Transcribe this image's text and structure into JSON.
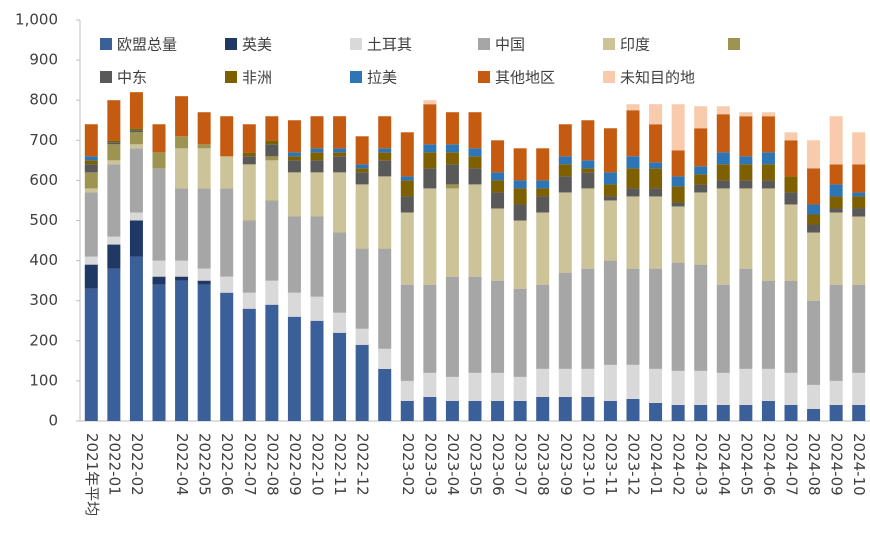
{
  "chart_data": {
    "type": "stacked_bar",
    "categories": [
      "2021年平均",
      "2022-01",
      "2022-02",
      null,
      "2022-04",
      "2022-05",
      "2022-06",
      "2022-07",
      "2022-08",
      "2022-09",
      "2022-10",
      "2022-11",
      "2022-12",
      null,
      "2023-02",
      "2023-03",
      "2023-04",
      "2023-05",
      "2023-06",
      "2023-07",
      "2023-08",
      "2023-09",
      "2023-10",
      "2023-11",
      "2023-12",
      "2024-01",
      "2024-02",
      "2024-03",
      "2024-04",
      "2024-05",
      "2024-06",
      "2024-07",
      "2024-08",
      "2024-09",
      "2024-10"
    ],
    "series": [
      {
        "name": "欧盟总量",
        "color": "#3b5f99",
        "values": [
          330,
          380,
          410,
          340,
          350,
          340,
          320,
          280,
          290,
          260,
          250,
          220,
          190,
          130,
          50,
          60,
          50,
          50,
          50,
          50,
          60,
          60,
          60,
          50,
          55,
          45,
          40,
          40,
          40,
          40,
          50,
          40,
          30,
          40,
          40
        ]
      },
      {
        "name": "英美",
        "color": "#1f3864",
        "values": [
          60,
          60,
          90,
          20,
          10,
          10,
          0,
          0,
          0,
          0,
          0,
          0,
          0,
          0,
          0,
          0,
          0,
          0,
          0,
          0,
          0,
          0,
          0,
          0,
          0,
          0,
          0,
          0,
          0,
          0,
          0,
          0,
          0,
          0,
          0
        ]
      },
      {
        "name": "土耳其",
        "color": "#d9d9d9",
        "values": [
          20,
          20,
          20,
          40,
          40,
          30,
          40,
          40,
          60,
          60,
          60,
          50,
          40,
          50,
          50,
          60,
          60,
          70,
          70,
          60,
          70,
          70,
          70,
          90,
          85,
          85,
          85,
          85,
          80,
          90,
          80,
          80,
          60,
          60,
          80
        ]
      },
      {
        "name": "中国",
        "color": "#a6a6a6",
        "values": [
          160,
          180,
          160,
          230,
          180,
          200,
          220,
          180,
          200,
          190,
          200,
          200,
          200,
          250,
          240,
          220,
          250,
          240,
          230,
          220,
          210,
          240,
          250,
          260,
          240,
          250,
          270,
          265,
          220,
          250,
          220,
          230,
          210,
          240,
          220
        ]
      },
      {
        "name": "印度",
        "color": "#cdc398",
        "values": [
          10,
          10,
          10,
          0,
          100,
          100,
          80,
          140,
          100,
          110,
          110,
          150,
          160,
          180,
          180,
          240,
          220,
          230,
          180,
          170,
          180,
          200,
          200,
          150,
          180,
          180,
          140,
          180,
          240,
          200,
          230,
          190,
          170,
          180,
          170
        ]
      },
      {
        "color": "#9c9450",
        "values": [
          40,
          40,
          30,
          40,
          30,
          10,
          0,
          0,
          10,
          0,
          0,
          0,
          0,
          0,
          0,
          0,
          10,
          0,
          0,
          0,
          0,
          0,
          0,
          0,
          0,
          0,
          0,
          0,
          0,
          0,
          0,
          0,
          0,
          0,
          0
        ]
      },
      {
        "name": "中东",
        "color": "#595959",
        "values": [
          20,
          5,
          5,
          0,
          0,
          0,
          0,
          20,
          30,
          30,
          30,
          40,
          30,
          40,
          40,
          50,
          50,
          40,
          40,
          40,
          40,
          40,
          40,
          10,
          20,
          20,
          10,
          20,
          20,
          20,
          20,
          30,
          20,
          10,
          20
        ]
      },
      {
        "name": "非洲",
        "color": "#7f6000",
        "values": [
          10,
          5,
          5,
          0,
          0,
          0,
          0,
          10,
          10,
          10,
          20,
          10,
          10,
          20,
          40,
          40,
          30,
          30,
          30,
          40,
          20,
          30,
          10,
          30,
          50,
          50,
          40,
          25,
          40,
          40,
          40,
          40,
          25,
          30,
          30
        ]
      },
      {
        "name": "拉美",
        "color": "#2e75b6",
        "values": [
          10,
          0,
          0,
          0,
          0,
          0,
          0,
          0,
          0,
          10,
          10,
          10,
          10,
          10,
          10,
          20,
          20,
          20,
          20,
          20,
          20,
          20,
          20,
          30,
          30,
          15,
          25,
          20,
          30,
          20,
          30,
          0,
          25,
          30,
          10
        ]
      },
      {
        "name": "其他地区",
        "color": "#c55a11",
        "values": [
          80,
          100,
          90,
          70,
          100,
          80,
          100,
          70,
          60,
          80,
          80,
          80,
          70,
          80,
          110,
          100,
          80,
          90,
          80,
          80,
          80,
          80,
          100,
          110,
          115,
          95,
          65,
          95,
          95,
          100,
          90,
          90,
          90,
          50,
          70
        ]
      },
      {
        "name": "未知目的地",
        "color": "#f8cbad",
        "values": [
          0,
          0,
          0,
          0,
          0,
          0,
          0,
          0,
          0,
          0,
          0,
          0,
          0,
          0,
          0,
          10,
          0,
          0,
          0,
          0,
          0,
          0,
          0,
          0,
          15,
          50,
          115,
          55,
          20,
          10,
          10,
          20,
          70,
          120,
          80
        ]
      }
    ],
    "ylim": [
      0,
      1000
    ],
    "yticks": [
      0,
      100,
      200,
      300,
      400,
      500,
      600,
      700,
      800,
      900,
      {
        "value": 1000,
        "label": "1,000"
      }
    ]
  }
}
